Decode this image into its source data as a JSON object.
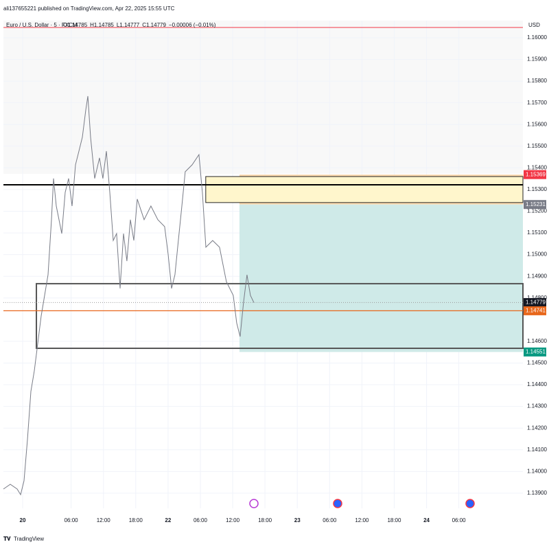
{
  "header": "ali137655221 published on TradingView.com, Apr 22, 2025 15:55 UTC",
  "footer": "TradingView",
  "chart_data": {
    "type": "line",
    "title": "Euro / U.S. Dollar · 5 · FXCM",
    "legend_ohlc": [
      "O1.14785",
      "H1.14785",
      "L1.14777",
      "C1.14779",
      "−0.00006 (−0.01%)"
    ],
    "currency": "USD",
    "color": "#787b86",
    "x": [
      -3.57,
      -2.29,
      -1.02,
      -0.38,
      0.25,
      0.89,
      1.53,
      2.17,
      2.8,
      3.44,
      4.08,
      4.71,
      5.35,
      5.73,
      6.24,
      7.26,
      7.9,
      8.54,
      9.17,
      9.81,
      10.45,
      11.08,
      11.72,
      12.1,
      12.61,
      13.38,
      14.27,
      14.9,
      15.54,
      16.18,
      16.82,
      17.45,
      18.09,
      18.73,
      19.36,
      20.0,
      20.64,
      21.28,
      22.55,
      23.82,
      25.1,
      26.37,
      27.01,
      27.65,
      28.28,
      28.92,
      29.56,
      30.19,
      31.47,
      32.74,
      33.38,
      34.02,
      35.29,
      36.56,
      37.84,
      39.11,
      39.75,
      40.38,
      41.02,
      41.66,
      42.3,
      42.93
    ],
    "values": [
      1.13919,
      1.13941,
      1.13919,
      1.13893,
      1.13957,
      1.14147,
      1.14369,
      1.14464,
      1.1459,
      1.14717,
      1.14812,
      1.14907,
      1.15161,
      1.15351,
      1.15224,
      1.15097,
      1.15287,
      1.15351,
      1.15224,
      1.15414,
      1.15477,
      1.15541,
      1.15667,
      1.15731,
      1.15541,
      1.15351,
      1.15446,
      1.15351,
      1.15477,
      1.15287,
      1.15065,
      1.15097,
      1.14844,
      1.15097,
      1.1497,
      1.15161,
      1.15065,
      1.15256,
      1.15161,
      1.15224,
      1.15161,
      1.15129,
      1.15002,
      1.14844,
      1.14907,
      1.15065,
      1.15224,
      1.15382,
      1.15414,
      1.15461,
      1.15287,
      1.15034,
      1.15065,
      1.15034,
      1.14875,
      1.14812,
      1.14685,
      1.14622,
      1.1478,
      1.14907,
      1.14812,
      1.14779
    ],
    "xlim": [
      -3.57,
      92.9
    ],
    "ylim": [
      1.1383,
      1.16079
    ],
    "xticks": [
      {
        "value": 0,
        "label": "20"
      },
      {
        "value": 9,
        "label": "06:00"
      },
      {
        "value": 15,
        "label": "12:00"
      },
      {
        "value": 21,
        "label": "18:00"
      },
      {
        "value": 27,
        "label": "22"
      },
      {
        "value": 33,
        "label": "06:00"
      },
      {
        "value": 39,
        "label": "12:00"
      },
      {
        "value": 45,
        "label": "18:00"
      },
      {
        "value": 51,
        "label": "23"
      },
      {
        "value": 57,
        "label": "06:00"
      },
      {
        "value": 63,
        "label": "12:00"
      },
      {
        "value": 69,
        "label": "18:00"
      },
      {
        "value": 75,
        "label": "24"
      },
      {
        "value": 81,
        "label": "06:00"
      }
    ],
    "yticks": [
      {
        "value": 1.16,
        "label": "1.16000"
      },
      {
        "value": 1.159,
        "label": "1.15900"
      },
      {
        "value": 1.158,
        "label": "1.15800"
      },
      {
        "value": 1.157,
        "label": "1.15700"
      },
      {
        "value": 1.156,
        "label": "1.15600"
      },
      {
        "value": 1.155,
        "label": "1.15500"
      },
      {
        "value": 1.154,
        "label": "1.15400"
      },
      {
        "value": 1.153,
        "label": "1.15300"
      },
      {
        "value": 1.152,
        "label": "1.15200"
      },
      {
        "value": 1.151,
        "label": "1.15100"
      },
      {
        "value": 1.15,
        "label": "1.15000"
      },
      {
        "value": 1.149,
        "label": "1.14900"
      },
      {
        "value": 1.148,
        "label": "1.14800"
      },
      {
        "value": 1.146,
        "label": "1.14600"
      },
      {
        "value": 1.145,
        "label": "1.14500"
      },
      {
        "value": 1.144,
        "label": "1.14400"
      },
      {
        "value": 1.143,
        "label": "1.14300"
      },
      {
        "value": 1.142,
        "label": "1.14200"
      },
      {
        "value": 1.141,
        "label": "1.14100"
      },
      {
        "value": 1.14,
        "label": "1.14000"
      },
      {
        "value": 1.139,
        "label": "1.13900"
      }
    ],
    "zones": [
      {
        "x0": 40.26,
        "top": 1.15369,
        "bottom": 1.15231,
        "color": "#fbd9ae"
      },
      {
        "x0": 40.26,
        "top": 1.15231,
        "bottom": 1.14551,
        "color": "#cfeae8"
      },
      {
        "x0": 34.0,
        "top": 1.1536,
        "bottom": 1.1524,
        "color": "#fff6cc"
      },
      {
        "x0": 2.55,
        "top": 1.14866,
        "bottom": 1.14568,
        "color": "none"
      }
    ],
    "levels": [
      {
        "value": 1.15322,
        "color": "#000000"
      },
      {
        "value": 1.14741,
        "color": "#e8671b"
      }
    ],
    "price_labels": [
      {
        "value": 1.15369,
        "color": "#f23645"
      },
      {
        "value": 1.15231,
        "color": "#787b86"
      },
      {
        "value": 1.14779,
        "color": "#131722"
      },
      {
        "value": 1.14741,
        "color": "#e8671b"
      },
      {
        "value": 1.14551,
        "color": "#089981"
      }
    ],
    "countdown": "04:24"
  }
}
